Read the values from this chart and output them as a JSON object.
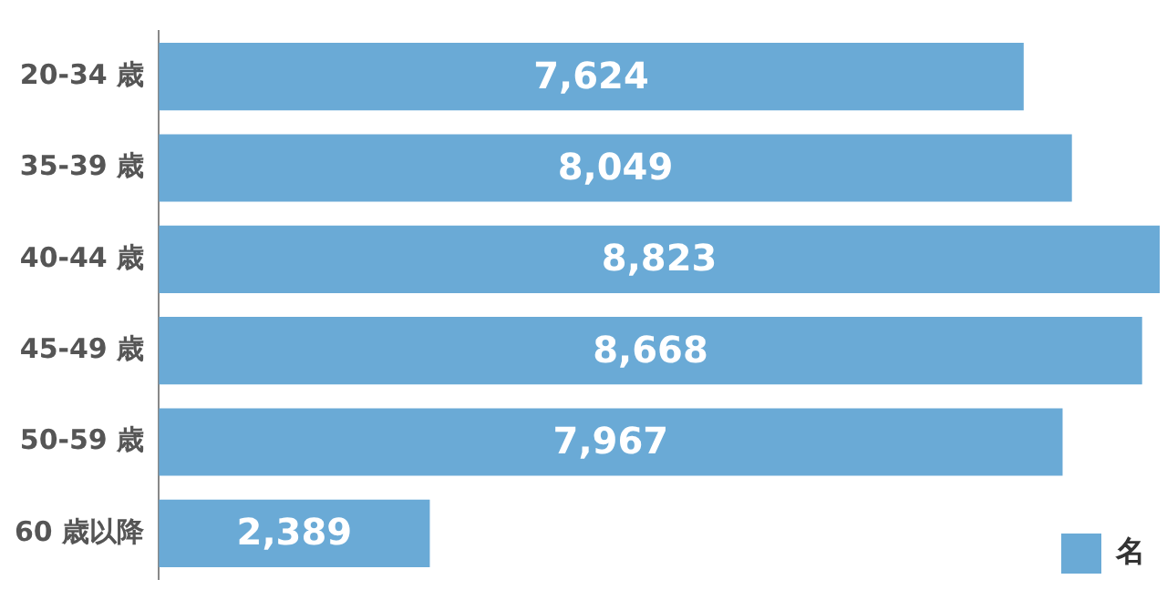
{
  "chart_data": {
    "type": "bar",
    "orientation": "horizontal",
    "categories": [
      "20-34 歳",
      "35-39 歳",
      "40-44 歳",
      "45-49 歳",
      "50-59 歳",
      "60 歳以降"
    ],
    "series": [
      {
        "name": "名",
        "color": "#6aaad6",
        "values": [
          7624,
          8049,
          8823,
          8668,
          7967,
          2389
        ],
        "value_labels": [
          "7,624",
          "8,049",
          "8,823",
          "8,668",
          "7,967",
          "2,389"
        ]
      }
    ],
    "legend": "bottom right"
  }
}
